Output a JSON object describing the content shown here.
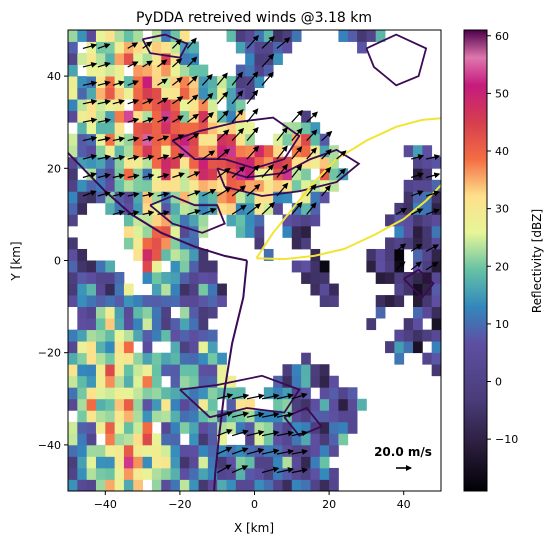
{
  "chart_data": {
    "type": "heatmap",
    "title": "PyDDA retreived winds @3.18 km",
    "xlabel": "X [km]",
    "ylabel": "Y [km]",
    "xlim": [
      -50,
      50
    ],
    "ylim": [
      -50,
      50
    ],
    "xticks": [
      -40,
      -20,
      0,
      20,
      40
    ],
    "yticks": [
      -40,
      -20,
      0,
      20,
      40
    ],
    "xtick_labels": [
      "−40",
      "−20",
      "0",
      "20",
      "40"
    ],
    "ytick_labels": [
      "−40",
      "−20",
      "0",
      "20",
      "40"
    ],
    "colorbar": {
      "label": "Reflectivity [dBZ]",
      "range": [
        -19,
        61
      ],
      "ticks": [
        -10,
        0,
        10,
        20,
        30,
        40,
        50,
        60
      ],
      "tick_labels": [
        "−10",
        "0",
        "10",
        "20",
        "30",
        "40",
        "50",
        "60"
      ],
      "colormap": "Spectral_r"
    },
    "quiver_key": {
      "label": "20.0 m/s",
      "x": 40,
      "y": -45,
      "speed": 20.0
    },
    "overlays": [
      {
        "name": "",
        "color": "#3d0a55",
        "kind": "contour",
        "style": "reflectivity contours"
      },
      {
        "name": "",
        "color": "#f2e436",
        "kind": "contour",
        "style": "lobe"
      },
      {
        "name": "",
        "color": "#3d0a55",
        "kind": "contour",
        "style": "lobe"
      }
    ],
    "storm_regions": [
      {
        "region": "northwest",
        "x": [
          -50,
          -5
        ],
        "y": [
          20,
          50
        ],
        "dbz": 35
      },
      {
        "region": "center-band",
        "x": [
          -20,
          25
        ],
        "y": [
          12,
          32
        ],
        "dbz": 42
      },
      {
        "region": "west",
        "x": [
          -50,
          -15
        ],
        "y": [
          -20,
          20
        ],
        "dbz": 5
      },
      {
        "region": "southwest",
        "x": [
          -50,
          -10
        ],
        "y": [
          -50,
          -20
        ],
        "dbz": 20
      },
      {
        "region": "south-center",
        "x": [
          -10,
          20
        ],
        "y": [
          -50,
          -25
        ],
        "dbz": 0
      },
      {
        "region": "east-line",
        "x": [
          10,
          50
        ],
        "y": [
          -10,
          20
        ],
        "dbz": -5
      }
    ]
  }
}
